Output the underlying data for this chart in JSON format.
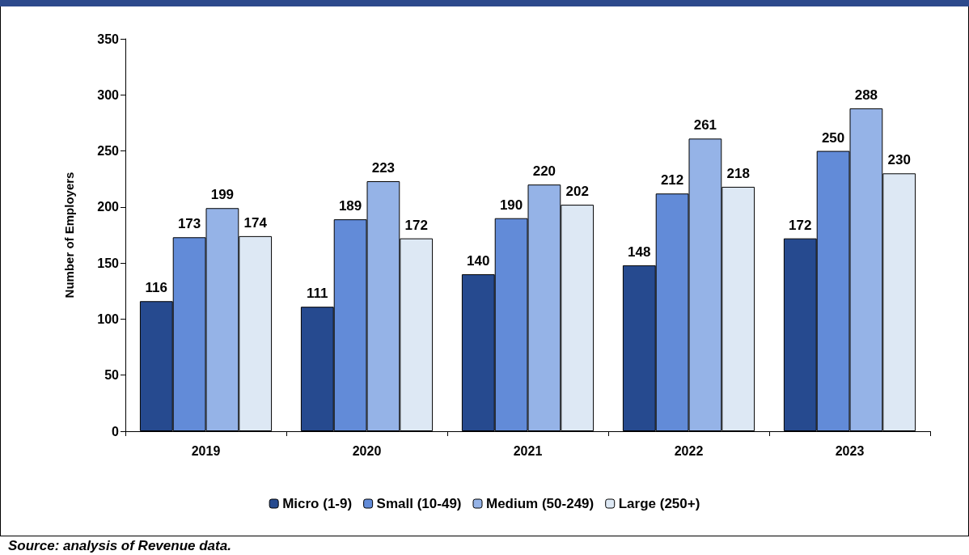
{
  "chart_data": {
    "type": "bar",
    "ylabel": "Number of Employers",
    "categories": [
      "2019",
      "2020",
      "2021",
      "2022",
      "2023"
    ],
    "series": [
      {
        "name": "Micro (1-9)",
        "color": "#264a8f",
        "values": [
          116,
          111,
          140,
          148,
          172
        ]
      },
      {
        "name": "Small (10-49)",
        "color": "#628bd8",
        "values": [
          173,
          189,
          190,
          212,
          250
        ]
      },
      {
        "name": "Medium (50-249)",
        "color": "#95b3e7",
        "values": [
          199,
          223,
          220,
          261,
          288
        ]
      },
      {
        "name": "Large (250+)",
        "color": "#dde8f4",
        "values": [
          174,
          172,
          202,
          218,
          230
        ]
      }
    ],
    "ylim": [
      0,
      350
    ],
    "yticks": [
      0,
      50,
      100,
      150,
      200,
      250,
      300,
      350
    ],
    "grid": false,
    "legend": "bottom",
    "data_labels": true,
    "annotations": [
      "Source: analysis of Revenue data."
    ]
  }
}
